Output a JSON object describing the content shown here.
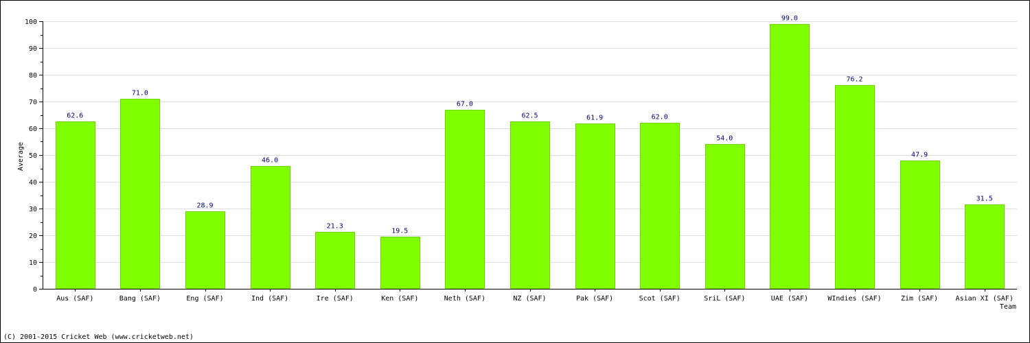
{
  "chart_data": {
    "type": "bar",
    "title": "",
    "xlabel": "Team",
    "ylabel": "Average",
    "ylim": [
      0,
      100
    ],
    "yticks": [
      0,
      10,
      20,
      30,
      40,
      50,
      60,
      70,
      80,
      90,
      100
    ],
    "grid": true,
    "categories": [
      "Aus (SAF)",
      "Bang (SAF)",
      "Eng (SAF)",
      "Ind (SAF)",
      "Ire (SAF)",
      "Ken (SAF)",
      "Neth (SAF)",
      "NZ (SAF)",
      "Pak (SAF)",
      "Scot (SAF)",
      "SriL (SAF)",
      "UAE (SAF)",
      "WIndies (SAF)",
      "Zim (SAF)",
      "Asian XI (SAF)"
    ],
    "values": [
      62.6,
      71.0,
      28.9,
      46.0,
      21.3,
      19.5,
      67.0,
      62.5,
      61.9,
      62.0,
      54.0,
      99.0,
      76.2,
      47.9,
      31.5
    ],
    "value_labels": [
      "62.6",
      "71.0",
      "28.9",
      "46.0",
      "21.3",
      "19.5",
      "67.0",
      "62.5",
      "61.9",
      "62.0",
      "54.0",
      "99.0",
      "76.2",
      "47.9",
      "31.5"
    ],
    "colors": {
      "bar": "#7fff00",
      "bar_edge": "#6fd400",
      "value_label": "#000080",
      "grid": "#dddddd",
      "axis": "#000000"
    }
  },
  "footer": {
    "copyright": "(C) 2001-2015 Cricket Web (www.cricketweb.net)"
  }
}
